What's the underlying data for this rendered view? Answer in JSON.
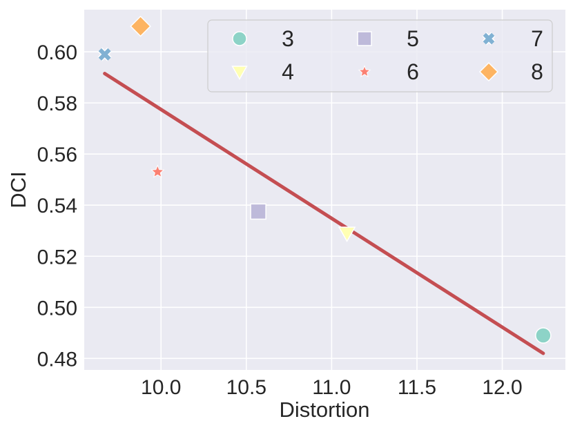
{
  "chart_data": {
    "type": "scatter",
    "title": "",
    "xlabel": "Distortion",
    "ylabel": "DCI",
    "xlim": [
      9.55,
      12.37
    ],
    "ylim": [
      0.4755,
      0.6165
    ],
    "xticks": [
      10.0,
      10.5,
      11.0,
      11.5,
      12.0
    ],
    "xtick_labels": [
      "10.0",
      "10.5",
      "11.0",
      "11.5",
      "12.0"
    ],
    "yticks": [
      0.48,
      0.5,
      0.52,
      0.54,
      0.56,
      0.58,
      0.6
    ],
    "ytick_labels": [
      "0.48",
      "0.50",
      "0.52",
      "0.54",
      "0.56",
      "0.58",
      "0.60"
    ],
    "grid": true,
    "legend_position": "top-right",
    "series": [
      {
        "name": "3",
        "marker": "circle",
        "color": "#8dd3c7",
        "x": 12.24,
        "y": 0.489
      },
      {
        "name": "4",
        "marker": "triangle-down",
        "color": "#ffffb3",
        "x": 11.09,
        "y": 0.529
      },
      {
        "name": "5",
        "marker": "square",
        "color": "#bebada",
        "x": 10.57,
        "y": 0.5375
      },
      {
        "name": "6",
        "marker": "star",
        "color": "#fb8072",
        "x": 9.98,
        "y": 0.553
      },
      {
        "name": "7",
        "marker": "x",
        "color": "#80b1d3",
        "x": 9.67,
        "y": 0.599
      },
      {
        "name": "8",
        "marker": "diamond",
        "color": "#fdb462",
        "x": 9.88,
        "y": 0.61
      }
    ],
    "trend_line": {
      "color": "#c44e52",
      "x": [
        9.67,
        12.24
      ],
      "y": [
        0.5915,
        0.482
      ]
    }
  }
}
